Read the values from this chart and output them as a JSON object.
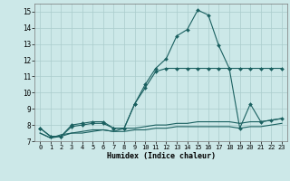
{
  "xlabel": "Humidex (Indice chaleur)",
  "background_color": "#cce8e8",
  "grid_color": "#aacccc",
  "line_color": "#1a6060",
  "xlim": [
    -0.5,
    23.5
  ],
  "ylim": [
    7.0,
    15.5
  ],
  "yticks": [
    7,
    8,
    9,
    10,
    11,
    12,
    13,
    14,
    15
  ],
  "xticks": [
    0,
    1,
    2,
    3,
    4,
    5,
    6,
    7,
    8,
    9,
    10,
    11,
    12,
    13,
    14,
    15,
    16,
    17,
    18,
    19,
    20,
    21,
    22,
    23
  ],
  "line1_x": [
    0,
    1,
    2,
    3,
    4,
    5,
    6,
    7,
    8,
    9,
    10,
    11,
    12,
    13,
    14,
    15,
    16,
    17,
    18,
    19,
    20,
    21,
    22,
    23
  ],
  "line1_y": [
    7.8,
    7.3,
    7.3,
    8.0,
    8.1,
    8.2,
    8.2,
    7.8,
    7.8,
    9.3,
    10.5,
    11.5,
    12.1,
    13.5,
    13.9,
    15.1,
    14.8,
    12.9,
    11.5,
    7.8,
    9.3,
    8.2,
    8.3,
    8.4
  ],
  "line2_x": [
    0,
    1,
    2,
    3,
    4,
    5,
    6,
    7,
    8,
    9,
    10,
    11,
    12,
    13,
    14,
    15,
    16,
    17,
    18,
    19,
    20,
    21,
    22,
    23
  ],
  "line2_y": [
    7.8,
    7.3,
    7.3,
    7.9,
    8.0,
    8.1,
    8.1,
    7.8,
    7.8,
    9.3,
    10.3,
    11.3,
    11.5,
    11.5,
    11.5,
    11.5,
    11.5,
    11.5,
    11.5,
    11.5,
    11.5,
    11.5,
    11.5,
    11.5
  ],
  "line3_x": [
    0,
    1,
    2,
    3,
    4,
    5,
    6,
    7,
    8,
    9,
    10,
    11,
    12,
    13,
    14,
    15,
    16,
    17,
    18,
    19,
    20,
    21,
    22,
    23
  ],
  "line3_y": [
    7.5,
    7.2,
    7.3,
    7.5,
    7.6,
    7.7,
    7.7,
    7.6,
    7.8,
    7.8,
    7.9,
    8.0,
    8.0,
    8.1,
    8.1,
    8.2,
    8.2,
    8.2,
    8.2,
    8.1,
    8.2,
    8.2,
    8.3,
    8.4
  ],
  "line4_x": [
    0,
    1,
    2,
    3,
    4,
    5,
    6,
    7,
    8,
    9,
    10,
    11,
    12,
    13,
    14,
    15,
    16,
    17,
    18,
    19,
    20,
    21,
    22,
    23
  ],
  "line4_y": [
    7.5,
    7.2,
    7.4,
    7.5,
    7.5,
    7.6,
    7.7,
    7.6,
    7.6,
    7.7,
    7.7,
    7.8,
    7.8,
    7.9,
    7.9,
    7.9,
    7.9,
    7.9,
    7.9,
    7.8,
    7.9,
    7.9,
    8.0,
    8.1
  ]
}
